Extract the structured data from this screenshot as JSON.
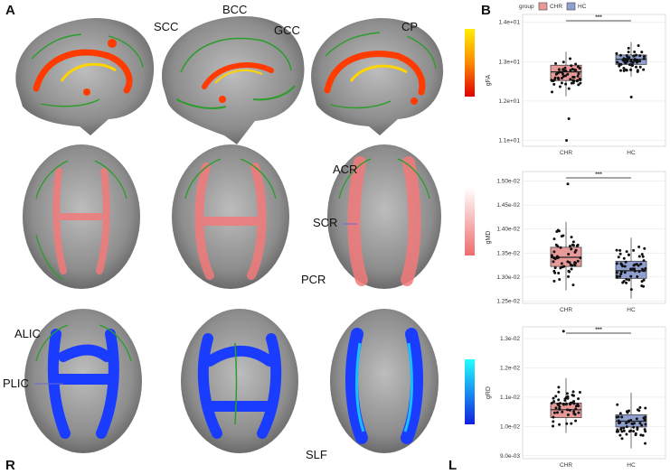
{
  "panel_labels": {
    "a": "A",
    "b": "B"
  },
  "orientation": {
    "left": "R",
    "right": "L"
  },
  "annotations": {
    "scc": "SCC",
    "bcc": "BCC",
    "gcc": "GCC",
    "cp": "CP",
    "acr": "ACR",
    "scr": "SCR",
    "pcr": "PCR",
    "alic": "ALIC",
    "plic": "PLIC",
    "slf": "SLF"
  },
  "colors": {
    "fa_hot": "#ff3b00",
    "fa_yellow": "#ffe600",
    "md_pink": "#f27a7a",
    "rd_blue": "#1a3cff",
    "rd_cyan": "#19e6ff",
    "skeleton_green": "#2a9d2a",
    "brain_gray": "#8a8a8a",
    "chr_fill": "#e89a98",
    "hc_fill": "#8e9fd0"
  },
  "legend": {
    "title": "group",
    "items": [
      {
        "label": "CHR",
        "color": "#e89a98"
      },
      {
        "label": "HC",
        "color": "#8e9fd0"
      }
    ]
  },
  "chart_data": [
    {
      "type": "box",
      "ylabel": "gFA",
      "categories": [
        "CHR",
        "HC"
      ],
      "yticks": [
        "1.1e+01",
        "1.2e+01",
        "1.3e+01",
        "1.4e+01"
      ],
      "ytick_values": [
        11,
        12,
        13,
        14
      ],
      "ylim": [
        10.85,
        14.2
      ],
      "significance": "***",
      "series": [
        {
          "q1": 12.52,
          "median": 12.74,
          "q3": 12.91,
          "whisker_low": 12.12,
          "whisker_high": 13.25,
          "outliers": [
            11.55,
            11.0
          ]
        },
        {
          "q1": 12.93,
          "median": 13.06,
          "q3": 13.17,
          "whisker_low": 12.62,
          "whisker_high": 13.5,
          "outliers": [
            12.1
          ]
        }
      ]
    },
    {
      "type": "box",
      "ylabel": "gMD",
      "categories": [
        "CHR",
        "HC"
      ],
      "yticks": [
        "1.25e-02",
        "1.30e-02",
        "1.35e-02",
        "1.40e-02",
        "1.45e-02",
        "1.50e-02"
      ],
      "ytick_values": [
        0.0125,
        0.013,
        0.0135,
        0.014,
        0.0145,
        0.015
      ],
      "ylim": [
        0.01245,
        0.0152
      ],
      "significance": "***",
      "series": [
        {
          "q1": 0.01322,
          "median": 0.01341,
          "q3": 0.01362,
          "whisker_low": 0.01272,
          "whisker_high": 0.01415,
          "outliers": [
            0.01494
          ]
        },
        {
          "q1": 0.01297,
          "median": 0.01313,
          "q3": 0.01333,
          "whisker_low": 0.01255,
          "whisker_high": 0.01382,
          "outliers": []
        }
      ]
    },
    {
      "type": "box",
      "ylabel": "gRD",
      "categories": [
        "CHR",
        "HC"
      ],
      "yticks": [
        "9.0e-03",
        "1.0e-02",
        "1.1e-02",
        "1.2e-02",
        "1.3e-02"
      ],
      "ytick_values": [
        0.009,
        0.01,
        0.011,
        0.012,
        0.013
      ],
      "ylim": [
        0.0089,
        0.0134
      ],
      "significance": "***",
      "series": [
        {
          "q1": 0.0103,
          "median": 0.01057,
          "q3": 0.0108,
          "whisker_low": 0.00978,
          "whisker_high": 0.01165,
          "outliers": [
            0.01325
          ]
        },
        {
          "q1": 0.00998,
          "median": 0.01018,
          "q3": 0.0104,
          "whisker_low": 0.00925,
          "whisker_high": 0.01115,
          "outliers": []
        }
      ]
    }
  ]
}
